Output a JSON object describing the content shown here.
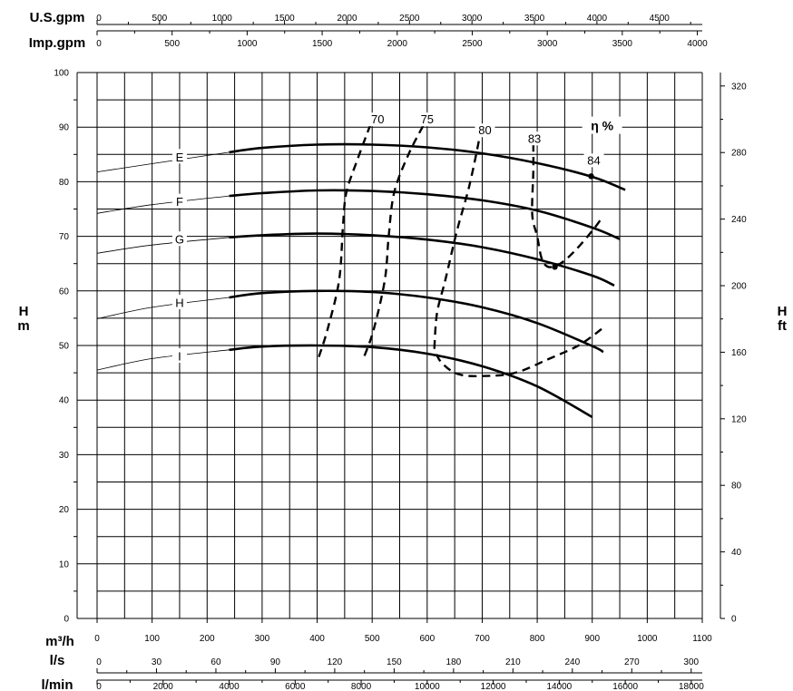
{
  "chart_data": {
    "type": "line",
    "left_axis": {
      "label_top": "H",
      "label_bottom": "m",
      "ylim": [
        0,
        100
      ],
      "ticks": [
        0,
        10,
        20,
        30,
        40,
        50,
        60,
        70,
        80,
        90,
        100
      ]
    },
    "right_axis": {
      "label_top": "H",
      "label_bottom": "ft",
      "ylim": [
        0,
        328.08
      ],
      "ticks": [
        0,
        40,
        80,
        120,
        160,
        200,
        240,
        280,
        320
      ]
    },
    "x_axes": [
      {
        "label": "U.S.gpm",
        "xlim": [
          0,
          4843
        ],
        "ticks": [
          0,
          500,
          1000,
          1500,
          2000,
          2500,
          3000,
          3500,
          4000,
          4500
        ]
      },
      {
        "label": "Imp.gpm",
        "xlim": [
          0,
          4033
        ],
        "ticks": [
          0,
          500,
          1000,
          1500,
          2000,
          2500,
          3000,
          3500,
          4000
        ]
      },
      {
        "label": "m³/h",
        "xlim": [
          0,
          1100
        ],
        "ticks": [
          0,
          100,
          200,
          300,
          400,
          500,
          600,
          700,
          800,
          900,
          1000,
          1100
        ]
      },
      {
        "label": "l/s",
        "xlim": [
          0,
          305.6
        ],
        "ticks": [
          0,
          30,
          60,
          90,
          120,
          150,
          180,
          210,
          240,
          270,
          300
        ]
      },
      {
        "label": "l/min",
        "xlim": [
          0,
          18333
        ],
        "ticks": [
          0,
          2000,
          4000,
          6000,
          8000,
          10000,
          12000,
          14000,
          16000,
          18000
        ]
      }
    ],
    "series": [
      {
        "name": "E",
        "label_at": [
          150,
          84.5
        ],
        "thin": [
          [
            0,
            81.8
          ],
          [
            100,
            83.3
          ],
          [
            240,
            85.4
          ]
        ],
        "x": [
          240,
          300,
          400,
          500,
          600,
          700,
          800,
          900,
          960
        ],
        "y": [
          85.4,
          86.2,
          86.8,
          86.8,
          86.3,
          85.2,
          83.4,
          80.9,
          78.5
        ]
      },
      {
        "name": "F",
        "label_at": [
          150,
          76.3
        ],
        "thin": [
          [
            0,
            74.2
          ],
          [
            100,
            75.8
          ],
          [
            240,
            77.4
          ]
        ],
        "x": [
          240,
          300,
          400,
          500,
          600,
          700,
          800,
          900,
          950
        ],
        "y": [
          77.4,
          77.9,
          78.4,
          78.3,
          77.7,
          76.6,
          74.7,
          71.6,
          69.5
        ]
      },
      {
        "name": "G",
        "label_at": [
          150,
          69.4
        ],
        "thin": [
          [
            0,
            66.9
          ],
          [
            100,
            68.4
          ],
          [
            240,
            69.8
          ]
        ],
        "x": [
          240,
          300,
          400,
          500,
          600,
          700,
          800,
          900,
          940
        ],
        "y": [
          69.8,
          70.2,
          70.5,
          70.2,
          69.4,
          68.0,
          65.8,
          62.8,
          61.0
        ]
      },
      {
        "name": "H",
        "label_at": [
          150,
          57.8
        ],
        "thin": [
          [
            0,
            54.9
          ],
          [
            100,
            57.0
          ],
          [
            240,
            58.8
          ]
        ],
        "x": [
          240,
          300,
          400,
          500,
          600,
          700,
          800,
          900,
          920
        ],
        "y": [
          58.8,
          59.6,
          60.0,
          59.8,
          58.8,
          57.0,
          54.1,
          49.9,
          48.8
        ]
      },
      {
        "name": "I",
        "label_at": [
          150,
          48.0
        ],
        "thin": [
          [
            0,
            45.5
          ],
          [
            100,
            47.6
          ],
          [
            240,
            49.2
          ]
        ],
        "x": [
          240,
          300,
          400,
          500,
          600,
          700,
          800,
          900
        ],
        "y": [
          49.2,
          49.8,
          50.0,
          49.7,
          48.5,
          46.2,
          42.5,
          36.9
        ]
      }
    ],
    "efficiency": {
      "title": "η %",
      "contours": [
        {
          "label": "70",
          "points": [
            [
              403,
              47.9
            ],
            [
              419,
              53
            ],
            [
              440,
              62
            ],
            [
              447,
              72
            ],
            [
              453,
              78
            ],
            [
              473,
              84
            ],
            [
              497,
              90.5
            ]
          ]
        },
        {
          "label": "75",
          "points": [
            [
              486,
              48.1
            ],
            [
              503,
              53
            ],
            [
              523,
              62
            ],
            [
              530,
              70
            ],
            [
              540,
              78
            ],
            [
              566,
              85
            ],
            [
              594,
              90.5
            ]
          ]
        },
        {
          "label": "80",
          "points": [
            [
              613,
              49.5
            ],
            [
              618,
              56
            ],
            [
              633,
              62
            ],
            [
              654,
              71
            ],
            [
              676,
              79
            ],
            [
              693,
              87
            ],
            [
              697,
              89.5
            ]
          ]
        },
        {
          "label": "83",
          "points": [
            [
              917,
              53
            ],
            [
              875,
              50
            ],
            [
              820,
              47.5
            ],
            [
              760,
              45
            ],
            [
              700,
              44.4
            ],
            [
              655,
              44.8
            ],
            [
              625,
              47
            ],
            [
              613,
              49.5
            ]
          ]
        },
        {
          "label": "84",
          "points": [
            [
              793,
              87
            ],
            [
              793,
              82
            ],
            [
              791,
              74
            ],
            [
              800,
              70
            ],
            [
              808,
              66
            ],
            [
              820,
              64.4
            ],
            [
              842,
              65
            ],
            [
              870,
              67.5
            ],
            [
              900,
              71
            ],
            [
              915,
              73
            ]
          ]
        }
      ],
      "contour_labels": [
        {
          "text": "70",
          "at": [
            510,
            91
          ]
        },
        {
          "text": "75",
          "at": [
            600,
            91
          ]
        },
        {
          "text": "80",
          "at": [
            705,
            89
          ]
        },
        {
          "text": "83",
          "at": [
            795,
            87.5
          ]
        },
        {
          "text": "84",
          "at": [
            903,
            83.5
          ]
        }
      ],
      "markers": [
        {
          "at": [
            898,
            81.0
          ]
        },
        {
          "at": [
            832,
            64.4
          ]
        }
      ]
    }
  }
}
